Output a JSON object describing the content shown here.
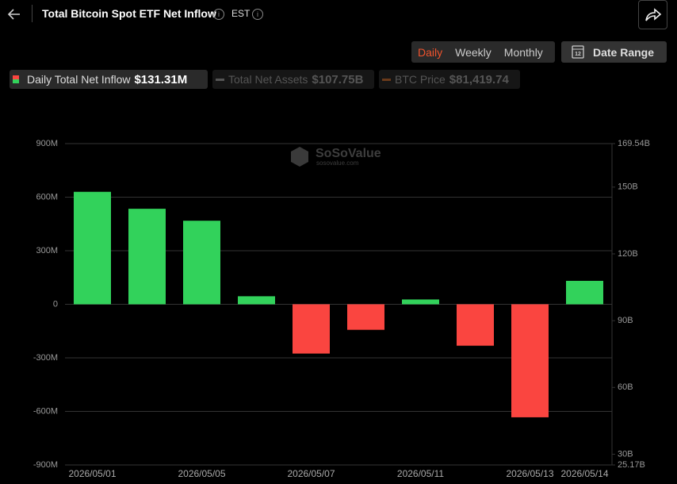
{
  "header": {
    "title": "Total Bitcoin Spot ETF Net Inflow",
    "timezone": "EST"
  },
  "controls": {
    "periods": [
      "Daily",
      "Weekly",
      "Monthly"
    ],
    "date_range": "Date Range"
  },
  "legend": {
    "items": [
      {
        "label": "Daily Total Net Inflow",
        "value": "$131.31M"
      },
      {
        "label": "Total Net Assets",
        "value": "$107.75B"
      },
      {
        "label": "BTC Price",
        "value": "$81,419.74"
      }
    ]
  },
  "watermark": {
    "name": "SoSoValue",
    "site": "sosovalue.com"
  },
  "chart_data": {
    "type": "bar",
    "categories": [
      "2026/05/01",
      null,
      "2026/05/05",
      null,
      "2026/05/07",
      null,
      "2026/05/11",
      null,
      "2026/05/13",
      "2026/05/14"
    ],
    "values": [
      630,
      535,
      468,
      45,
      -276,
      -143,
      27,
      -232,
      -633,
      131.31
    ],
    "positive_color": "#32d25b",
    "negative_color": "#fa4540",
    "ylim": [
      -900,
      900
    ],
    "yticks": [
      {
        "value": 900,
        "label": "900M"
      },
      {
        "value": 600,
        "label": "600M"
      },
      {
        "value": 300,
        "label": "300M"
      },
      0,
      {
        "value": -300,
        "label": "-300M"
      },
      {
        "value": -600,
        "label": "-600M"
      },
      {
        "value": -900,
        "label": "-900M"
      }
    ],
    "y2lim": [
      25.17,
      169.54
    ],
    "y2ticks": [
      {
        "value": 169.54,
        "label": "169.54B"
      },
      {
        "value": 150,
        "label": "150B"
      },
      {
        "value": 120,
        "label": "120B"
      },
      {
        "value": 90,
        "label": "90B"
      },
      {
        "value": 60,
        "label": "60B"
      },
      {
        "value": 30,
        "label": "30B"
      },
      {
        "value": 25.17,
        "label": "25.17B"
      }
    ],
    "grid": true
  }
}
